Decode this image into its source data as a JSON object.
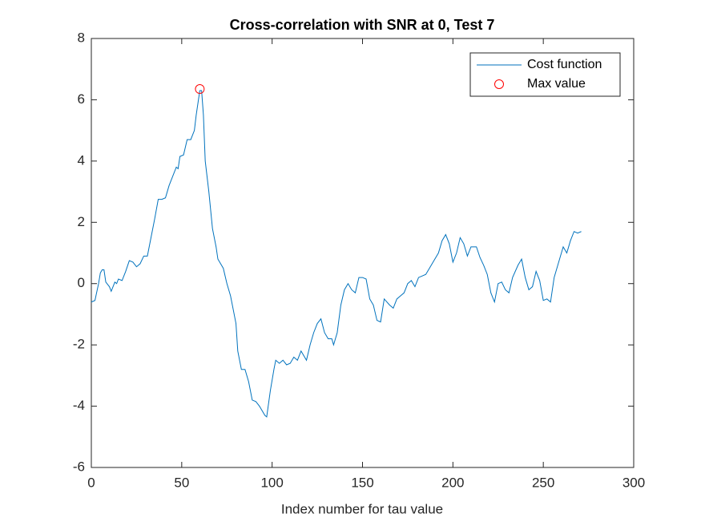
{
  "chart_data": {
    "type": "line",
    "title": "Cross-correlation with SNR at 0, Test 7",
    "xlabel": "Index number for tau value",
    "xlim": [
      0,
      300
    ],
    "xticks": [
      0,
      50,
      100,
      150,
      200,
      250,
      300
    ],
    "ylim": [
      -6,
      8
    ],
    "yticks": [
      -6,
      -4,
      -2,
      0,
      2,
      4,
      6,
      8
    ],
    "grid": false,
    "legend": "northeast",
    "series": [
      {
        "name": "Cost function",
        "color": "#0072bd",
        "marker": "none",
        "x": [
          0,
          2,
          4,
          5,
          6,
          7,
          8,
          10,
          11,
          13,
          14,
          15,
          17,
          19,
          21,
          23,
          25,
          27,
          29,
          31,
          33,
          35,
          37,
          39,
          41,
          43,
          45,
          47,
          48,
          49,
          51,
          53,
          55,
          57,
          58,
          60,
          61,
          62,
          63,
          65,
          67,
          69,
          70,
          73,
          75,
          77,
          79,
          80,
          81,
          83,
          85,
          87,
          89,
          91,
          93,
          96,
          97,
          99,
          101,
          102,
          104,
          106,
          108,
          110,
          112,
          114,
          116,
          119,
          121,
          123,
          125,
          127,
          129,
          131,
          133,
          134,
          136,
          138,
          140,
          142,
          144,
          146,
          148,
          150,
          152,
          154,
          156,
          158,
          160,
          162,
          165,
          167,
          169,
          171,
          173,
          175,
          177,
          179,
          181,
          183,
          185,
          187,
          190,
          192,
          194,
          196,
          198,
          200,
          202,
          204,
          206,
          208,
          210,
          213,
          215,
          217,
          219,
          221,
          223,
          225,
          227,
          229,
          231,
          233,
          236,
          238,
          240,
          242,
          244,
          246,
          248,
          250,
          252,
          254,
          256,
          259,
          261,
          263,
          265,
          267,
          269,
          271
        ],
        "values": [
          -0.6,
          -0.55,
          0.0,
          0.35,
          0.45,
          0.45,
          0.05,
          -0.1,
          -0.25,
          0.05,
          0.0,
          0.15,
          0.1,
          0.4,
          0.75,
          0.7,
          0.55,
          0.65,
          0.9,
          0.9,
          1.5,
          2.1,
          2.75,
          2.75,
          2.8,
          3.2,
          3.5,
          3.8,
          3.75,
          4.15,
          4.2,
          4.7,
          4.7,
          5.0,
          5.5,
          6.3,
          6.3,
          5.5,
          4.0,
          3.0,
          1.8,
          1.2,
          0.8,
          0.5,
          0.0,
          -0.4,
          -1.0,
          -1.3,
          -2.2,
          -2.8,
          -2.8,
          -3.2,
          -3.8,
          -3.85,
          -4.0,
          -4.3,
          -4.35,
          -3.5,
          -2.8,
          -2.5,
          -2.6,
          -2.5,
          -2.65,
          -2.6,
          -2.4,
          -2.5,
          -2.2,
          -2.5,
          -2.0,
          -1.6,
          -1.3,
          -1.15,
          -1.6,
          -1.8,
          -1.8,
          -2.0,
          -1.6,
          -0.7,
          -0.2,
          0.0,
          -0.2,
          -0.3,
          0.2,
          0.2,
          0.15,
          -0.5,
          -0.7,
          -1.2,
          -1.25,
          -0.5,
          -0.7,
          -0.8,
          -0.5,
          -0.4,
          -0.3,
          0.0,
          0.1,
          -0.1,
          0.2,
          0.25,
          0.3,
          0.5,
          0.8,
          1.0,
          1.4,
          1.6,
          1.3,
          0.7,
          1.0,
          1.5,
          1.3,
          0.9,
          1.2,
          1.2,
          0.85,
          0.6,
          0.3,
          -0.3,
          -0.6,
          0.0,
          0.05,
          -0.2,
          -0.3,
          0.2,
          0.6,
          0.8,
          0.2,
          -0.2,
          -0.1,
          0.4,
          0.1,
          -0.55,
          -0.5,
          -0.6,
          0.2,
          0.8,
          1.2,
          1.0,
          1.4,
          1.7,
          1.65,
          1.7
        ]
      },
      {
        "name": "Max value",
        "color": "#ff0000",
        "marker": "circle",
        "x": [
          60
        ],
        "values": [
          6.35
        ]
      }
    ]
  }
}
